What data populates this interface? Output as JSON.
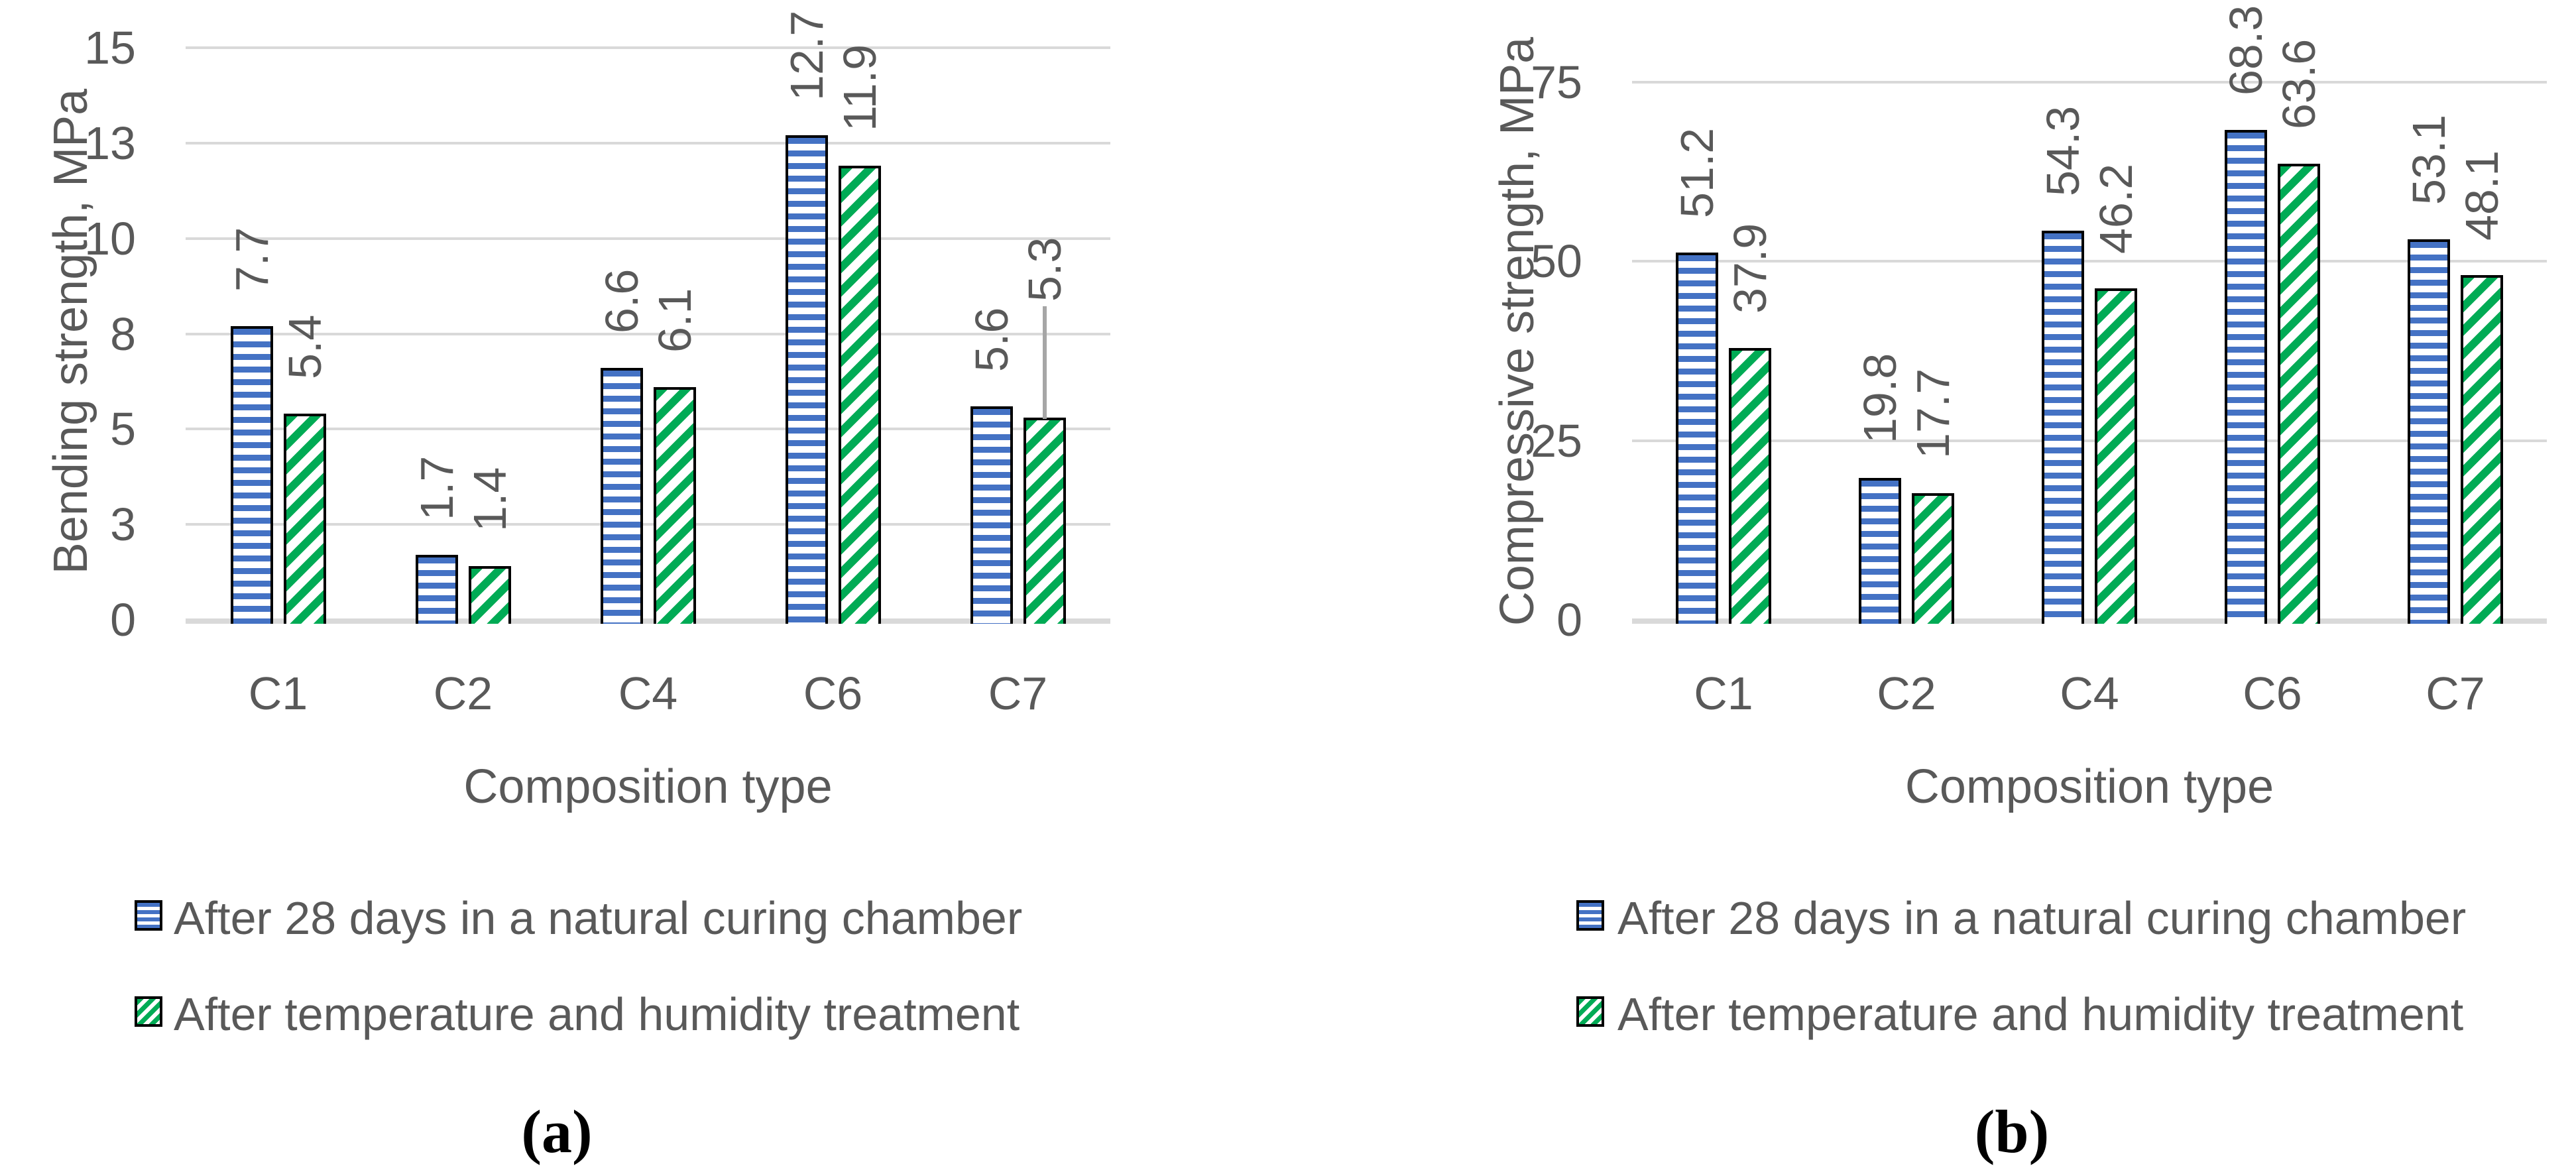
{
  "colors": {
    "series1_blue": "#4472C4",
    "series2_green": "#00AB55",
    "gridline": "#D9D9D9",
    "axis_text": "#595959",
    "bar_border": "#000000",
    "leader_line": "#A6A6A6",
    "caption_text": "#000000",
    "background": "#FFFFFF"
  },
  "legend": {
    "items": [
      {
        "label": "After 28 days in a natural curing chamber",
        "swatch": "blue-horizontal-stripes"
      },
      {
        "label": "After temperature and humidity treatment",
        "swatch": "green-diagonal-stripes"
      }
    ]
  },
  "chart_data": [
    {
      "type": "bar",
      "panel": "a",
      "caption": "(a)",
      "ylabel": "Bending strength, MPa",
      "xlabel": "Composition type",
      "categories": [
        "C1",
        "C2",
        "C4",
        "C6",
        "C7"
      ],
      "ylim": [
        0,
        15
      ],
      "y_tick_values": [
        0,
        2.5,
        5,
        7.5,
        10,
        12.5,
        15
      ],
      "y_tick_labels": [
        "0",
        "3",
        "5",
        "8",
        "10",
        "13",
        "15"
      ],
      "grid": true,
      "legend_position": "bottom-left",
      "series": [
        {
          "name": "After 28 days in a natural curing chamber",
          "pattern": "horizontal-stripes",
          "values": [
            7.7,
            1.7,
            6.6,
            12.7,
            5.6
          ],
          "labels": [
            "7.7",
            "1.7",
            "6.6",
            "12.7",
            "5.6"
          ]
        },
        {
          "name": "After temperature and humidity treatment",
          "pattern": "diagonal-stripes",
          "values": [
            5.4,
            1.4,
            6.1,
            11.9,
            5.3
          ],
          "labels": [
            "5.4",
            "1.4",
            "6.1",
            "11.9",
            "5.3"
          ]
        }
      ],
      "label_with_leader_line": {
        "series_index": 1,
        "category": "C7",
        "label": "5.3"
      }
    },
    {
      "type": "bar",
      "panel": "b",
      "caption": "(b)",
      "ylabel": "Compressive strength, MPa",
      "xlabel": "Composition type",
      "categories": [
        "C1",
        "C2",
        "C4",
        "C6",
        "C7"
      ],
      "ylim": [
        0,
        75
      ],
      "y_tick_values": [
        0,
        25,
        50,
        75
      ],
      "y_tick_labels": [
        "0",
        "25",
        "50",
        "75"
      ],
      "grid": true,
      "legend_position": "bottom-left",
      "series": [
        {
          "name": "After 28 days in a natural curing chamber",
          "pattern": "horizontal-stripes",
          "values": [
            51.2,
            19.8,
            54.3,
            68.3,
            53.1
          ],
          "labels": [
            "51.2",
            "19.8",
            "54.3",
            "68.3",
            "53.1"
          ]
        },
        {
          "name": "After temperature and humidity treatment",
          "pattern": "diagonal-stripes",
          "values": [
            37.9,
            17.7,
            46.2,
            63.6,
            48.1
          ],
          "labels": [
            "37.9",
            "17.7",
            "46.2",
            "63.6",
            "48.1"
          ]
        }
      ],
      "label_with_leader_line": null
    }
  ]
}
